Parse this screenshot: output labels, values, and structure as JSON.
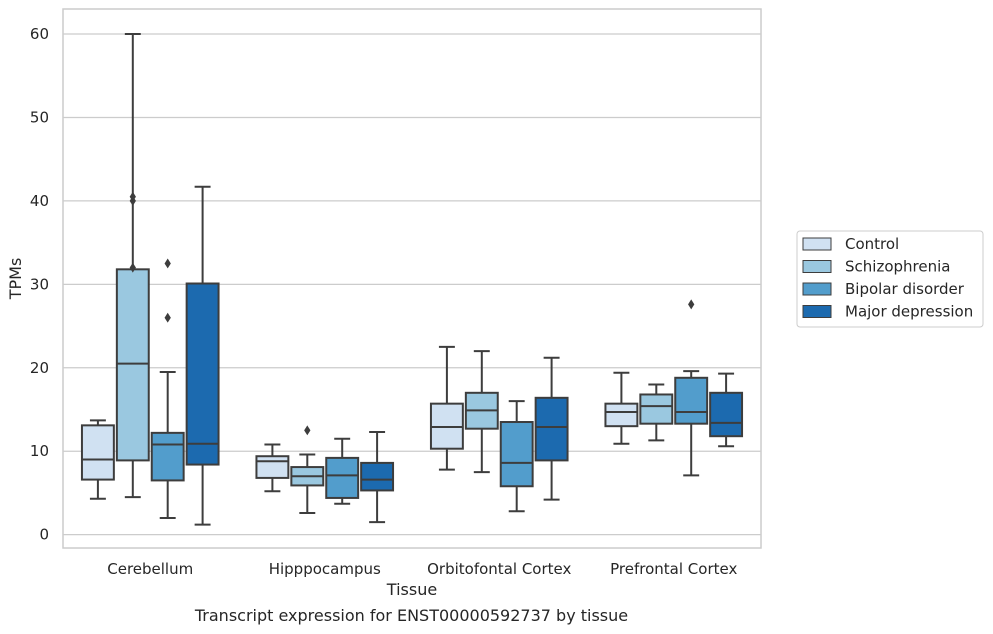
{
  "caption": "Transcript expression for ENST00000592737 by tissue",
  "chart_data": {
    "type": "box",
    "xlabel": "Tissue",
    "ylabel": "TPMs",
    "ylim": [
      -1.6,
      63
    ],
    "yticks": [
      0,
      10,
      20,
      30,
      40,
      50,
      60
    ],
    "grid": true,
    "legend_position": "right",
    "categories": [
      "Cerebellum",
      "Hipppocampus",
      "Orbitofontal Cortex",
      "Prefrontal Cortex"
    ],
    "series": [
      {
        "name": "Control",
        "color": "#d0e1f2",
        "boxes": [
          {
            "whislo": 4.3,
            "q1": 6.6,
            "med": 9.0,
            "q3": 13.1,
            "whishi": 13.7,
            "fliers": []
          },
          {
            "whislo": 5.2,
            "q1": 6.8,
            "med": 8.8,
            "q3": 9.4,
            "whishi": 10.8,
            "fliers": []
          },
          {
            "whislo": 7.8,
            "q1": 10.3,
            "med": 12.9,
            "q3": 15.7,
            "whishi": 22.5,
            "fliers": []
          },
          {
            "whislo": 10.9,
            "q1": 13.0,
            "med": 14.7,
            "q3": 15.7,
            "whishi": 19.4,
            "fliers": []
          }
        ]
      },
      {
        "name": "Schizophrenia",
        "color": "#9ac8e0",
        "boxes": [
          {
            "whislo": 4.5,
            "q1": 8.9,
            "med": 20.5,
            "q3": 31.8,
            "whishi": 60.0,
            "fliers": [
              32.0,
              40.0,
              40.5
            ]
          },
          {
            "whislo": 2.6,
            "q1": 5.9,
            "med": 7.0,
            "q3": 8.1,
            "whishi": 9.6,
            "fliers": [
              12.5
            ]
          },
          {
            "whislo": 7.5,
            "q1": 12.7,
            "med": 14.9,
            "q3": 17.0,
            "whishi": 22.0,
            "fliers": []
          },
          {
            "whislo": 11.3,
            "q1": 13.3,
            "med": 15.4,
            "q3": 16.8,
            "whishi": 18.0,
            "fliers": []
          }
        ]
      },
      {
        "name": "Bipolar disorder",
        "color": "#529dcc",
        "boxes": [
          {
            "whislo": 2.0,
            "q1": 6.5,
            "med": 10.8,
            "q3": 12.2,
            "whishi": 19.5,
            "fliers": [
              26.0,
              32.5
            ]
          },
          {
            "whislo": 3.7,
            "q1": 4.4,
            "med": 7.1,
            "q3": 9.2,
            "whishi": 11.5,
            "fliers": []
          },
          {
            "whislo": 2.8,
            "q1": 5.8,
            "med": 8.6,
            "q3": 13.5,
            "whishi": 16.0,
            "fliers": []
          },
          {
            "whislo": 7.1,
            "q1": 13.3,
            "med": 14.7,
            "q3": 18.8,
            "whishi": 19.6,
            "fliers": [
              27.6
            ]
          }
        ]
      },
      {
        "name": "Major depression",
        "color": "#1c6aaf",
        "boxes": [
          {
            "whislo": 1.2,
            "q1": 8.4,
            "med": 10.9,
            "q3": 30.1,
            "whishi": 41.7,
            "fliers": []
          },
          {
            "whislo": 1.5,
            "q1": 5.3,
            "med": 6.6,
            "q3": 8.6,
            "whishi": 12.3,
            "fliers": []
          },
          {
            "whislo": 4.2,
            "q1": 8.9,
            "med": 12.9,
            "q3": 16.4,
            "whishi": 21.2,
            "fliers": []
          },
          {
            "whislo": 10.6,
            "q1": 11.8,
            "med": 13.4,
            "q3": 17.0,
            "whishi": 19.3,
            "fliers": []
          }
        ]
      }
    ]
  }
}
